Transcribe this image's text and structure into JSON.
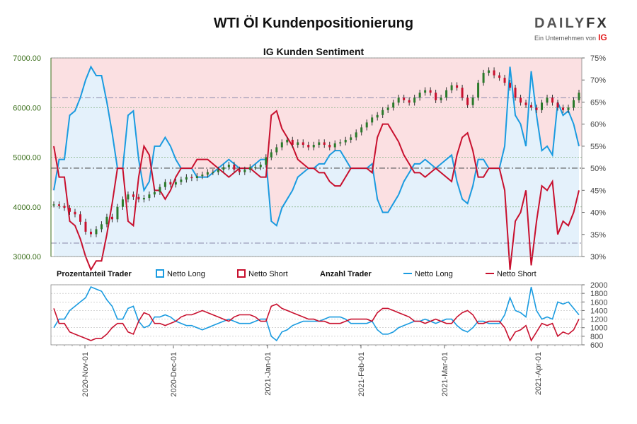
{
  "title": "WTI Öl Kundenpositionierung",
  "subtitle": "IG Kunden Sentiment",
  "logo": {
    "brand_left": "DAILY",
    "brand_right": "FX",
    "tagline": "Ein Unternehmen von",
    "parent": "IG"
  },
  "legend": {
    "group1": "Prozentanteil Trader",
    "group1_long": "Netto Long",
    "group1_short": "Netto Short",
    "group2": "Anzahl Trader",
    "group2_long": "Netto Long",
    "group2_short": "Netto Short"
  },
  "colors": {
    "long": "#1a9be0",
    "short": "#c8102e",
    "up": "#2a7a2a",
    "down": "#c8102e",
    "bg_long": "#e4f1fb",
    "bg_short": "#fbe0e2",
    "grid": "#7fb07f",
    "axis_left": "#3a6e1a"
  },
  "chart_data": [
    {
      "type": "line",
      "title": "IG Kunden Sentiment",
      "y_left_ticks": [
        "3000.00",
        "4000.00",
        "5000.00",
        "6000.00",
        "7000.00"
      ],
      "y_left_range": [
        3000,
        7000
      ],
      "y_right_ticks": [
        "30%",
        "35%",
        "40%",
        "45%",
        "50%",
        "55%",
        "60%",
        "65%",
        "70%",
        "75%"
      ],
      "y_right_range": [
        30,
        75
      ],
      "reference_lines": [
        4780,
        6200,
        3270
      ],
      "price_series": {
        "name": "WTI",
        "values": [
          4050,
          4020,
          3980,
          3900,
          3850,
          3700,
          3500,
          3450,
          3550,
          3650,
          3800,
          3750,
          4000,
          4150,
          4250,
          4200,
          4150,
          4180,
          4250,
          4300,
          4400,
          4500,
          4450,
          4500,
          4550,
          4600,
          4580,
          4620,
          4650,
          4700,
          4700,
          4750,
          4800,
          4850,
          4750,
          4700,
          4750,
          4800,
          4800,
          4850,
          5000,
          5100,
          5200,
          5300,
          5350,
          5250,
          5300,
          5250,
          5200,
          5250,
          5300,
          5250,
          5200,
          5280,
          5300,
          5350,
          5400,
          5500,
          5600,
          5700,
          5800,
          5850,
          5950,
          6000,
          6100,
          6200,
          6150,
          6100,
          6200,
          6300,
          6350,
          6300,
          6150,
          6200,
          6350,
          6450,
          6400,
          6200,
          6050,
          6200,
          6500,
          6700,
          6750,
          6650,
          6600,
          6500,
          6400,
          6200,
          6100,
          6050,
          6000,
          5950,
          6100,
          6200,
          6100,
          6000,
          5950,
          6000,
          6150,
          6300
        ]
      },
      "sentiment_long_pct": {
        "name": "Netto Long",
        "values": [
          45,
          52,
          52,
          62,
          63,
          66,
          70,
          73,
          71,
          71,
          65,
          58,
          50,
          50,
          62,
          63,
          52,
          45,
          47,
          55,
          55,
          57,
          55,
          52,
          50,
          50,
          50,
          48,
          48,
          48,
          49,
          50,
          51,
          52,
          51,
          50,
          50,
          50,
          51,
          52,
          52,
          38,
          37,
          41,
          43,
          45,
          48,
          49,
          50,
          50,
          51,
          51,
          53,
          54,
          54,
          52,
          50,
          50,
          50,
          50,
          51,
          43,
          40,
          40,
          42,
          44,
          47,
          49,
          51,
          51,
          52,
          51,
          50,
          51,
          52,
          53,
          47,
          43,
          42,
          46,
          52,
          52,
          50,
          50,
          50,
          55,
          73,
          62,
          60,
          55,
          72,
          62,
          54,
          55,
          53,
          65,
          62,
          63,
          60,
          55
        ]
      },
      "sentiment_short_pct": {
        "name": "Netto Short",
        "values": [
          55,
          48,
          48,
          38,
          37,
          34,
          30,
          27,
          29,
          29,
          35,
          42,
          50,
          50,
          38,
          37,
          48,
          55,
          53,
          45,
          45,
          43,
          45,
          48,
          50,
          50,
          50,
          52,
          52,
          52,
          51,
          50,
          49,
          48,
          49,
          50,
          50,
          50,
          49,
          48,
          48,
          62,
          63,
          59,
          57,
          55,
          52,
          51,
          50,
          50,
          49,
          49,
          47,
          46,
          46,
          48,
          50,
          50,
          50,
          50,
          49,
          57,
          60,
          60,
          58,
          56,
          53,
          51,
          49,
          49,
          48,
          49,
          50,
          49,
          48,
          47,
          53,
          57,
          58,
          54,
          48,
          48,
          50,
          50,
          50,
          45,
          27,
          38,
          40,
          45,
          28,
          38,
          46,
          45,
          47,
          35,
          38,
          37,
          40,
          45
        ]
      },
      "x_ticks": [
        "2020-Nov-01",
        "2020-Dec-01",
        "2021-Jan-01",
        "2021-Feb-01",
        "2021-Mar-01",
        "2021-Apr-01"
      ]
    },
    {
      "type": "line",
      "title": "Anzahl Trader",
      "y_ticks": [
        "600",
        "800",
        "1000",
        "1200",
        "1400",
        "1600",
        "1800",
        "2000"
      ],
      "y_range": [
        600,
        2000
      ],
      "series": [
        {
          "name": "Netto Long",
          "values": [
            1000,
            1200,
            1200,
            1400,
            1500,
            1600,
            1700,
            1950,
            1900,
            1850,
            1650,
            1500,
            1200,
            1200,
            1450,
            1500,
            1150,
            1000,
            1050,
            1250,
            1250,
            1300,
            1250,
            1150,
            1100,
            1050,
            1050,
            1000,
            950,
            1000,
            1050,
            1100,
            1150,
            1200,
            1150,
            1100,
            1100,
            1100,
            1150,
            1200,
            1200,
            800,
            700,
            900,
            950,
            1050,
            1100,
            1150,
            1150,
            1150,
            1150,
            1200,
            1250,
            1250,
            1250,
            1200,
            1100,
            1100,
            1100,
            1100,
            1150,
            950,
            850,
            850,
            900,
            1000,
            1050,
            1100,
            1150,
            1150,
            1200,
            1150,
            1100,
            1150,
            1200,
            1200,
            1050,
            950,
            900,
            1000,
            1150,
            1150,
            1100,
            1100,
            1100,
            1300,
            1700,
            1400,
            1350,
            1250,
            1950,
            1400,
            1200,
            1250,
            1200,
            1600,
            1550,
            1600,
            1450,
            1300
          ]
        },
        {
          "name": "Netto Short",
          "values": [
            1450,
            1100,
            1100,
            900,
            850,
            800,
            750,
            700,
            750,
            750,
            850,
            1000,
            1100,
            1100,
            900,
            850,
            1150,
            1350,
            1300,
            1100,
            1100,
            1050,
            1100,
            1150,
            1250,
            1300,
            1300,
            1350,
            1400,
            1350,
            1300,
            1250,
            1200,
            1150,
            1250,
            1300,
            1300,
            1300,
            1250,
            1150,
            1150,
            1500,
            1550,
            1450,
            1400,
            1350,
            1300,
            1250,
            1200,
            1200,
            1150,
            1150,
            1100,
            1100,
            1100,
            1150,
            1200,
            1200,
            1200,
            1200,
            1150,
            1350,
            1450,
            1450,
            1400,
            1350,
            1300,
            1250,
            1150,
            1150,
            1100,
            1150,
            1200,
            1150,
            1100,
            1100,
            1250,
            1350,
            1400,
            1300,
            1100,
            1100,
            1150,
            1150,
            1150,
            1000,
            700,
            900,
            950,
            1050,
            700,
            900,
            1100,
            1050,
            1100,
            800,
            900,
            850,
            950,
            1200
          ]
        }
      ]
    }
  ]
}
